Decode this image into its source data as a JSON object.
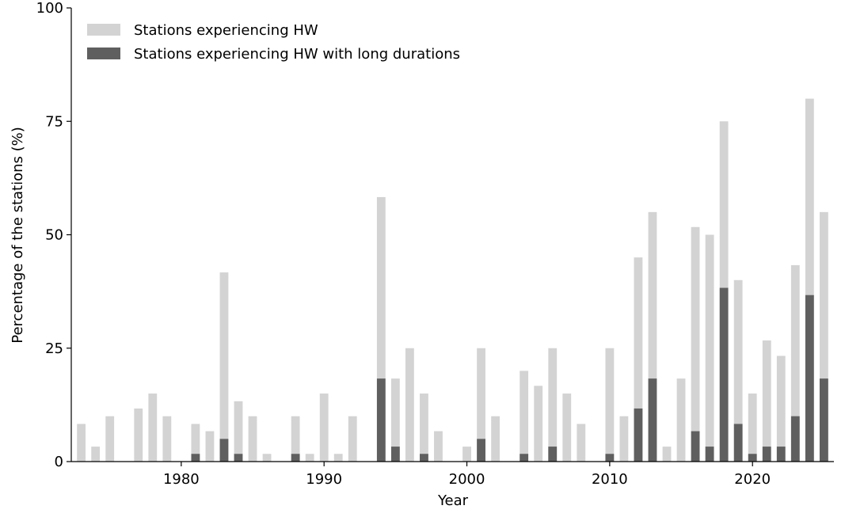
{
  "chart_data": {
    "type": "bar",
    "x": [
      1973,
      1974,
      1975,
      1976,
      1977,
      1978,
      1979,
      1980,
      1981,
      1982,
      1983,
      1984,
      1985,
      1986,
      1987,
      1988,
      1989,
      1990,
      1991,
      1992,
      1993,
      1994,
      1995,
      1996,
      1997,
      1998,
      1999,
      2000,
      2001,
      2002,
      2003,
      2004,
      2005,
      2006,
      2007,
      2008,
      2009,
      2010,
      2011,
      2012,
      2013,
      2014,
      2015,
      2016,
      2017,
      2018,
      2019,
      2020,
      2021,
      2022,
      2023,
      2024,
      2025
    ],
    "series": [
      {
        "name": "Stations experiencing HW",
        "color": "#d3d3d3",
        "values": [
          8.3,
          3.3,
          10,
          0,
          11.7,
          15,
          10,
          0,
          8.3,
          6.7,
          41.7,
          13.3,
          10,
          1.7,
          0,
          10,
          1.7,
          15,
          1.7,
          10,
          0,
          58.3,
          18.3,
          25,
          15,
          6.7,
          0,
          3.3,
          25,
          10,
          0,
          20,
          16.7,
          25,
          15,
          8.3,
          0,
          25,
          10,
          45,
          55,
          3.3,
          18.3,
          51.7,
          50,
          75,
          40,
          15,
          26.7,
          23.3,
          43.3,
          80,
          55
        ]
      },
      {
        "name": "Stations experiencing HW with long durations",
        "color": "#5f5f5f",
        "values": [
          0,
          0,
          0,
          0,
          0,
          0,
          0,
          0,
          1.7,
          0,
          5,
          1.7,
          0,
          0,
          0,
          1.7,
          0,
          0,
          0,
          0,
          0,
          18.3,
          3.3,
          0,
          1.7,
          0,
          0,
          0,
          5,
          0,
          0,
          1.7,
          0,
          3.3,
          0,
          0,
          0,
          1.7,
          0,
          11.7,
          18.3,
          0,
          0,
          6.7,
          3.3,
          38.3,
          8.3,
          1.7,
          3.3,
          3.3,
          10,
          36.7,
          18.3
        ]
      }
    ],
    "xlabel": "Year",
    "ylabel": "Percentage of the stations (%)",
    "xlim": [
      1972.3,
      2025.7
    ],
    "xticks": [
      1980,
      1990,
      2000,
      2010,
      2020
    ],
    "ylim": [
      0,
      100
    ],
    "yticks": [
      0,
      25,
      50,
      75,
      100
    ],
    "legend": "upper-left"
  }
}
